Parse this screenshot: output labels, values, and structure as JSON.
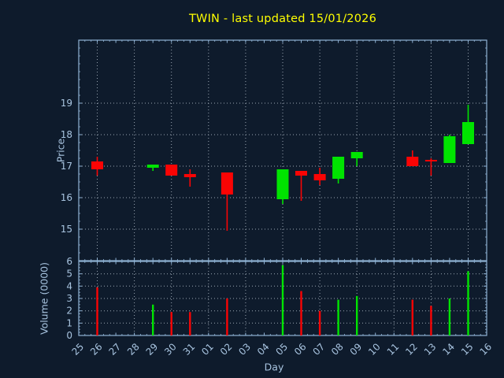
{
  "title": "TWIN - last updated 15/01/2026",
  "colors": {
    "background": "#0e1b2c",
    "frame": "#8fb2d4",
    "tick_label": "#a8c4e0",
    "title": "#ffff00",
    "grid": "#9aa6b2",
    "up": "#00e400",
    "down": "#fa0404"
  },
  "chart_data": [
    {
      "type": "candlestick",
      "title": "TWIN - last updated 15/01/2026",
      "xlabel": "Day",
      "ylabel": "Price",
      "x_ticklabels": [
        "25",
        "26",
        "27",
        "28",
        "29",
        "30",
        "31",
        "01",
        "02",
        "03",
        "04",
        "05",
        "06",
        "07",
        "08",
        "09",
        "10",
        "11",
        "12",
        "13",
        "14",
        "15",
        "16"
      ],
      "ylim": [
        14,
        21
      ],
      "yticks": [
        15,
        16,
        17,
        18,
        19
      ],
      "grid": {
        "style": "dotted",
        "x_gridlines_on": [
          "26",
          "28",
          "30",
          "01",
          "03",
          "05",
          "07",
          "09",
          "11",
          "13",
          "15"
        ],
        "y_gridlines_on": [
          15,
          16,
          17,
          18,
          19
        ]
      },
      "legend": null,
      "candles": [
        {
          "day": "26",
          "open": 17.15,
          "high": 17.3,
          "low": 16.7,
          "close": 16.9
        },
        {
          "day": "29",
          "open": 16.95,
          "high": 17.05,
          "low": 16.85,
          "close": 17.05
        },
        {
          "day": "30",
          "open": 17.05,
          "high": 17.05,
          "low": 16.7,
          "close": 16.7
        },
        {
          "day": "31",
          "open": 16.75,
          "high": 16.9,
          "low": 16.35,
          "close": 16.65
        },
        {
          "day": "02",
          "open": 16.8,
          "high": 16.8,
          "low": 14.95,
          "close": 16.1
        },
        {
          "day": "05",
          "open": 15.95,
          "high": 16.9,
          "low": 15.8,
          "close": 16.9
        },
        {
          "day": "06",
          "open": 16.85,
          "high": 16.85,
          "low": 15.9,
          "close": 16.7
        },
        {
          "day": "07",
          "open": 16.75,
          "high": 16.95,
          "low": 16.4,
          "close": 16.55
        },
        {
          "day": "08",
          "open": 16.6,
          "high": 17.3,
          "low": 16.45,
          "close": 17.3
        },
        {
          "day": "09",
          "open": 17.25,
          "high": 17.45,
          "low": 17.0,
          "close": 17.45
        },
        {
          "day": "12",
          "open": 17.3,
          "high": 17.5,
          "low": 17.0,
          "close": 17.0
        },
        {
          "day": "13",
          "open": 17.2,
          "high": 17.25,
          "low": 16.7,
          "close": 17.15
        },
        {
          "day": "14",
          "open": 17.1,
          "high": 18.0,
          "low": 17.1,
          "close": 17.95
        },
        {
          "day": "15",
          "open": 17.7,
          "high": 18.95,
          "low": 17.7,
          "close": 18.4
        }
      ]
    },
    {
      "type": "bar",
      "ylabel": "Volume (0000)",
      "ylim": [
        0,
        6
      ],
      "yticks": [
        0,
        1,
        2,
        3,
        4,
        5,
        6
      ],
      "bars": [
        {
          "day": "26",
          "value": 3.9,
          "direction": "down"
        },
        {
          "day": "29",
          "value": 2.5,
          "direction": "up"
        },
        {
          "day": "30",
          "value": 1.9,
          "direction": "down"
        },
        {
          "day": "31",
          "value": 1.9,
          "direction": "down"
        },
        {
          "day": "02",
          "value": 3.0,
          "direction": "down"
        },
        {
          "day": "05",
          "value": 5.7,
          "direction": "up"
        },
        {
          "day": "06",
          "value": 3.6,
          "direction": "down"
        },
        {
          "day": "07",
          "value": 2.0,
          "direction": "down"
        },
        {
          "day": "08",
          "value": 2.9,
          "direction": "up"
        },
        {
          "day": "09",
          "value": 3.2,
          "direction": "up"
        },
        {
          "day": "12",
          "value": 2.9,
          "direction": "down"
        },
        {
          "day": "13",
          "value": 2.4,
          "direction": "down"
        },
        {
          "day": "14",
          "value": 3.0,
          "direction": "up"
        },
        {
          "day": "15",
          "value": 5.2,
          "direction": "up"
        }
      ]
    }
  ]
}
